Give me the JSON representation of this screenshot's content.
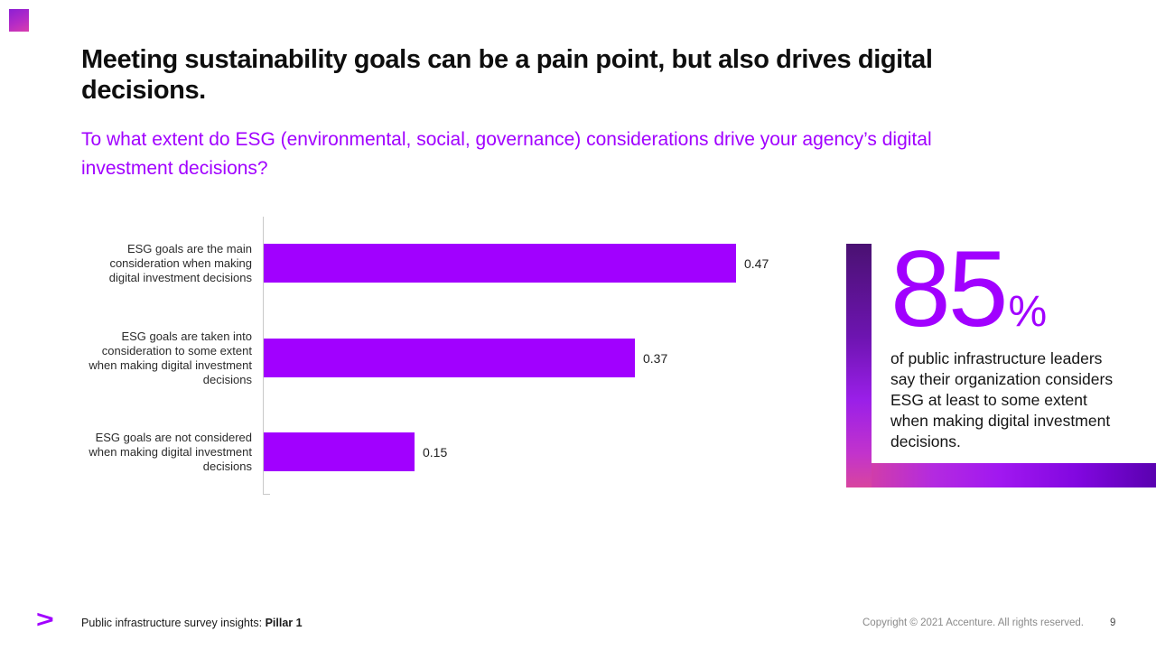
{
  "slide": {
    "title": "Meeting sustainability goals can be a pain point, but also drives digital decisions.",
    "subtitle": "To what extent do ESG (environmental, social, governance) considerations drive your agency’s digital investment decisions?"
  },
  "chart_data": {
    "type": "bar",
    "orientation": "horizontal",
    "title": "",
    "xlabel": "",
    "ylabel": "",
    "categories": [
      "ESG goals are the main consideration when making digital investment decisions",
      "ESG goals are taken into consideration to some extent when making digital investment decisions",
      "ESG goals are not considered when making digital investment decisions"
    ],
    "values": [
      0.47,
      0.37,
      0.15
    ],
    "value_labels": [
      "0.47",
      "0.37",
      "0.15"
    ],
    "xlim": [
      0,
      0.5
    ],
    "grid": false,
    "legend": false,
    "bar_color": "#a100ff"
  },
  "stat": {
    "value": "85",
    "percent_sign": "%",
    "description": "of public infrastructure leaders say their organization considers ESG at least to some extent when making digital investment decisions."
  },
  "footer": {
    "logo_symbol": ">",
    "left_text": "Public infrastructure survey insights: ",
    "left_text_bold": "Pillar 1",
    "copyright": "Copyright © 2021 Accenture. All rights reserved.",
    "page_number": "9"
  },
  "colors": {
    "accent_purple": "#a100ff",
    "title_black": "#0e0e0e",
    "label_gray": "#2b2b2b",
    "axis_gray": "#c9c9c9",
    "copyright_gray": "#8a8a8a",
    "gradient_top_violet": "#4a1172",
    "gradient_corner_pink": "#d8459f",
    "gradient_right_violet": "#5a01b0"
  }
}
